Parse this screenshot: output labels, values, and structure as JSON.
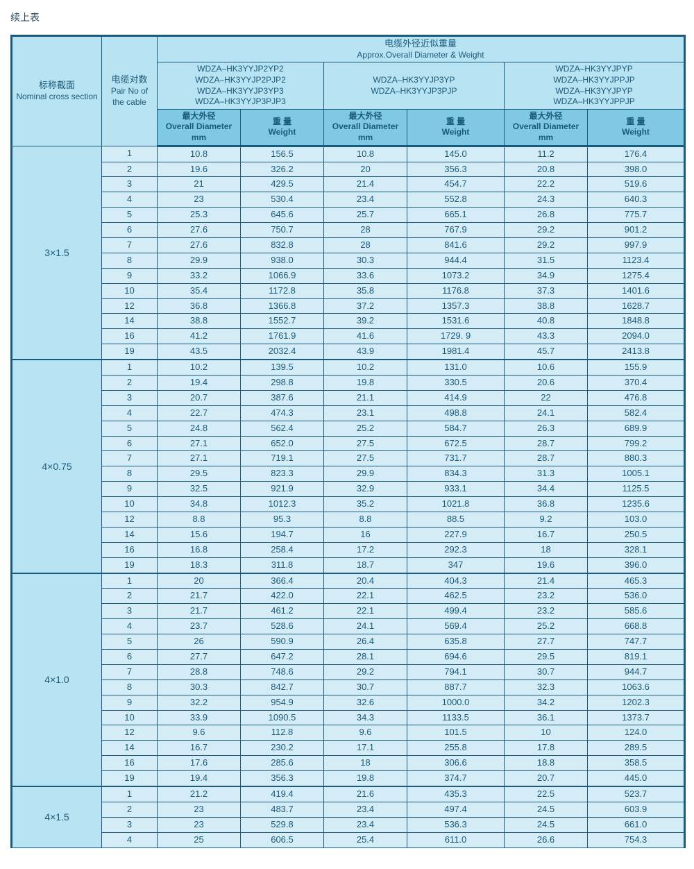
{
  "title": "续上表",
  "hdr": {
    "col1": {
      "zh": "标称截面",
      "en": "Nominal cross section"
    },
    "col2": {
      "zh": "电缆对数",
      "en": "Pair No of the cable"
    },
    "top": {
      "zh": "电缆外径近似重量",
      "en": "Approx.Overall Diameter & Weight"
    },
    "grp1": [
      "WDZA–HK3YYJP2YP2",
      "WDZA–HK3YYJP2PJP2",
      "WDZA–HK3YYJP3YP3",
      "WDZA–HK3YYJP3PJP3"
    ],
    "grp2": [
      "WDZA–HK3YYJP3YP",
      "WDZA–HK3YYJP3PJP"
    ],
    "grp3": [
      "WDZA–HK3YYJPYP",
      "WDZA–HK3YYJPPJP",
      "WDZA–HK3YYJPYP",
      "WDZA–HK3YYJPPJP"
    ],
    "diam": {
      "zh": "最大外径",
      "en": "Overall Diameter",
      "u": "mm"
    },
    "wt": {
      "zh": "重 量",
      "en": "Weight"
    }
  },
  "sections": [
    {
      "name": "3×1.5",
      "rows": [
        [
          "1",
          "10.8",
          "156.5",
          "10.8",
          "145.0",
          "11.2",
          "176.4"
        ],
        [
          "2",
          "19.6",
          "326.2",
          "20",
          "356.3",
          "20.8",
          "398.0"
        ],
        [
          "3",
          "21",
          "429.5",
          "21.4",
          "454.7",
          "22.2",
          "519.6"
        ],
        [
          "4",
          "23",
          "530.4",
          "23.4",
          "552.8",
          "24.3",
          "640.3"
        ],
        [
          "5",
          "25.3",
          "645.6",
          "25.7",
          "665.1",
          "26.8",
          "775.7"
        ],
        [
          "6",
          "27.6",
          "750.7",
          "28",
          "767.9",
          "29.2",
          "901.2"
        ],
        [
          "7",
          "27.6",
          "832.8",
          "28",
          "841.6",
          "29.2",
          "997.9"
        ],
        [
          "8",
          "29.9",
          "938.0",
          "30.3",
          "944.4",
          "31.5",
          "1123.4"
        ],
        [
          "9",
          "33.2",
          "1066.9",
          "33.6",
          "1073.2",
          "34.9",
          "1275.4"
        ],
        [
          "10",
          "35.4",
          "1172.8",
          "35.8",
          "1176.8",
          "37.3",
          "1401.6"
        ],
        [
          "12",
          "36.8",
          "1366.8",
          "37.2",
          "1357.3",
          "38.8",
          "1628.7"
        ],
        [
          "14",
          "38.8",
          "1552.7",
          "39.2",
          "1531.6",
          "40.8",
          "1848.8"
        ],
        [
          "16",
          "41.2",
          "1761.9",
          "41.6",
          "1729. 9",
          "43.3",
          "2094.0"
        ],
        [
          "19",
          "43.5",
          "2032.4",
          "43.9",
          "1981.4",
          "45.7",
          "2413.8"
        ]
      ]
    },
    {
      "name": "4×0.75",
      "rows": [
        [
          "1",
          "10.2",
          "139.5",
          "10.2",
          "131.0",
          "10.6",
          "155.9"
        ],
        [
          "2",
          "19.4",
          "298.8",
          "19.8",
          "330.5",
          "20.6",
          "370.4"
        ],
        [
          "3",
          "20.7",
          "387.6",
          "21.1",
          "414.9",
          "22",
          "476.8"
        ],
        [
          "4",
          "22.7",
          "474.3",
          "23.1",
          "498.8",
          "24.1",
          "582.4"
        ],
        [
          "5",
          "24.8",
          "562.4",
          "25.2",
          "584.7",
          "26.3",
          "689.9"
        ],
        [
          "6",
          "27.1",
          "652.0",
          "27.5",
          "672.5",
          "28.7",
          "799.2"
        ],
        [
          "7",
          "27.1",
          "719.1",
          "27.5",
          "731.7",
          "28.7",
          "880.3"
        ],
        [
          "8",
          "29.5",
          "823.3",
          "29.9",
          "834.3",
          "31.3",
          "1005.1"
        ],
        [
          "9",
          "32.5",
          "921.9",
          "32.9",
          "933.1",
          "34.4",
          "1125.5"
        ],
        [
          "10",
          "34.8",
          "1012.3",
          "35.2",
          "1021.8",
          "36.8",
          "1235.6"
        ],
        [
          "12",
          "8.8",
          "95.3",
          "8.8",
          "88.5",
          "9.2",
          "103.0"
        ],
        [
          "14",
          "15.6",
          "194.7",
          "16",
          "227.9",
          "16.7",
          "250.5"
        ],
        [
          "16",
          "16.8",
          "258.4",
          "17.2",
          "292.3",
          "18",
          "328.1"
        ],
        [
          "19",
          "18.3",
          "311.8",
          "18.7",
          "347",
          "19.6",
          "396.0"
        ]
      ]
    },
    {
      "name": "4×1.0",
      "rows": [
        [
          "1",
          "20",
          "366.4",
          "20.4",
          "404.3",
          "21.4",
          "465.3"
        ],
        [
          "2",
          "21.7",
          "422.0",
          "22.1",
          "462.5",
          "23.2",
          "536.0"
        ],
        [
          "3",
          "21.7",
          "461.2",
          "22.1",
          "499.4",
          "23.2",
          "585.6"
        ],
        [
          "4",
          "23.7",
          "528.6",
          "24.1",
          "569.4",
          "25.2",
          "668.8"
        ],
        [
          "5",
          "26",
          "590.9",
          "26.4",
          "635.8",
          "27.7",
          "747.7"
        ],
        [
          "6",
          "27.7",
          "647.2",
          "28.1",
          "694.6",
          "29.5",
          "819.1"
        ],
        [
          "7",
          "28.8",
          "748.6",
          "29.2",
          "794.1",
          "30.7",
          "944.7"
        ],
        [
          "8",
          "30.3",
          "842.7",
          "30.7",
          "887.7",
          "32.3",
          "1063.6"
        ],
        [
          "9",
          "32.2",
          "954.9",
          "32.6",
          "1000.0",
          "34.2",
          "1202.3"
        ],
        [
          "10",
          "33.9",
          "1090.5",
          "34.3",
          "1133.5",
          "36.1",
          "1373.7"
        ],
        [
          "12",
          "9.6",
          "112.8",
          "9.6",
          "101.5",
          "10",
          "124.0"
        ],
        [
          "14",
          "16.7",
          "230.2",
          "17.1",
          "255.8",
          "17.8",
          "289.5"
        ],
        [
          "16",
          "17.6",
          "285.6",
          "18",
          "306.6",
          "18.8",
          "358.5"
        ],
        [
          "19",
          "19.4",
          "356.3",
          "19.8",
          "374.7",
          "20.7",
          "445.0"
        ]
      ]
    },
    {
      "name": "4×1.5",
      "rows": [
        [
          "1",
          "21.2",
          "419.4",
          "21.6",
          "435.3",
          "22.5",
          "523.7"
        ],
        [
          "2",
          "23",
          "483.7",
          "23.4",
          "497.4",
          "24.5",
          "603.9"
        ],
        [
          "3",
          "23",
          "529.8",
          "23.4",
          "536.3",
          "24.5",
          "661.0"
        ],
        [
          "4",
          "25",
          "606.5",
          "25.4",
          "611.0",
          "26.6",
          "754.3"
        ]
      ]
    }
  ],
  "style": {
    "header_bg": "#b8e3f2",
    "body_bg": "#d4ecf5",
    "border": "#1a5a7a",
    "text": "#1a5a7a"
  }
}
